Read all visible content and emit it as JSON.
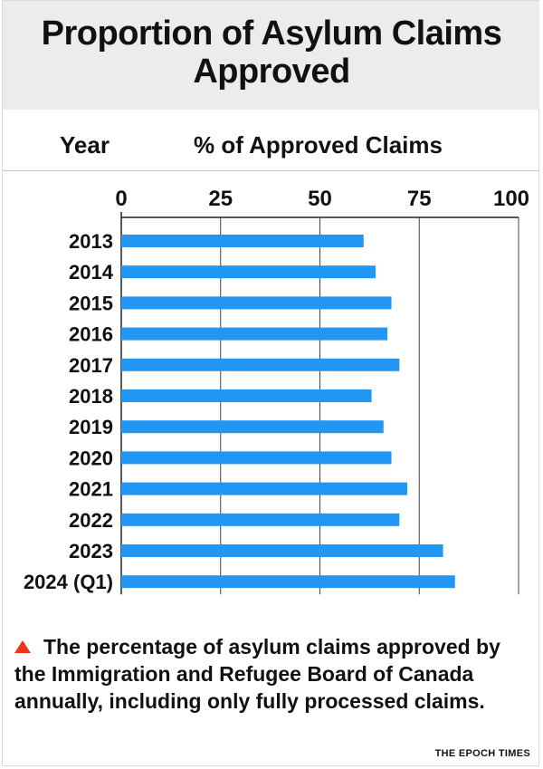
{
  "title": "Proportion of Asylum Claims Approved",
  "column_headers": {
    "year": "Year",
    "value": "% of Approved Claims"
  },
  "note": "The percentage of asylum claims approved by the Immigration and Refugee Board of Canada annually, including only fully processed claims.",
  "source": "THE EPOCH TIMES",
  "colors": {
    "bar": "#2196f3",
    "accent_triangle": "#e8361b",
    "title_band": "#ececec"
  },
  "chart_data": {
    "type": "bar",
    "orientation": "horizontal",
    "categories": [
      "2013",
      "2014",
      "2015",
      "2016",
      "2017",
      "2018",
      "2019",
      "2020",
      "2021",
      "2022",
      "2023",
      "2024 (Q1)"
    ],
    "values": [
      61,
      64,
      68,
      67,
      70,
      63,
      66,
      68,
      72,
      70,
      81,
      84
    ],
    "xlim": [
      0,
      100
    ],
    "xticks": [
      0,
      25,
      50,
      75,
      100
    ],
    "grid": true,
    "xlabel": "% of Approved Claims",
    "ylabel": "Year"
  }
}
